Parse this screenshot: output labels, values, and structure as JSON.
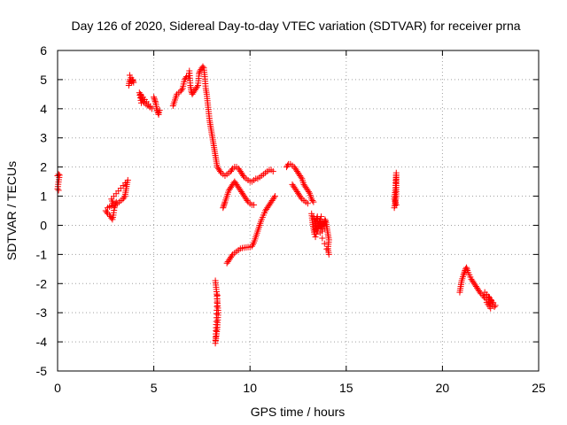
{
  "chart_data": {
    "type": "scatter",
    "title": "Day 126 of 2020, Sidereal Day-to-day VTEC variation (SDTVAR) for receiver prna",
    "xlabel": "GPS time / hours",
    "ylabel": "SDTVAR / TECUs",
    "xlim": [
      0,
      25
    ],
    "ylim": [
      -5,
      6
    ],
    "xticks": [
      0,
      5,
      10,
      15,
      20,
      25
    ],
    "yticks": [
      -5,
      -4,
      -3,
      -2,
      -1,
      0,
      1,
      2,
      3,
      4,
      5,
      6
    ],
    "grid": true,
    "marker": "+",
    "color": "#ff0000",
    "segments": [
      {
        "name": "t0",
        "points": [
          [
            0.0,
            1.7
          ],
          [
            0.05,
            1.75
          ],
          [
            0.1,
            1.72
          ],
          [
            0.0,
            1.25
          ],
          [
            0.05,
            1.2
          ]
        ]
      },
      {
        "name": "t1",
        "points": [
          [
            2.5,
            0.5
          ],
          [
            2.6,
            0.4
          ],
          [
            2.7,
            0.35
          ],
          [
            2.75,
            0.3
          ],
          [
            2.8,
            0.25
          ],
          [
            2.85,
            0.2
          ],
          [
            2.9,
            0.35
          ],
          [
            2.95,
            0.6
          ],
          [
            3.0,
            0.7
          ],
          [
            3.05,
            0.8
          ],
          [
            3.1,
            0.75
          ],
          [
            3.2,
            0.8
          ],
          [
            3.3,
            0.85
          ],
          [
            3.4,
            0.9
          ],
          [
            3.5,
            1.0
          ],
          [
            3.55,
            1.2
          ],
          [
            3.6,
            1.4
          ],
          [
            3.65,
            1.55
          ],
          [
            2.8,
            0.9
          ],
          [
            2.9,
            0.7
          ],
          [
            2.6,
            0.6
          ]
        ]
      },
      {
        "name": "t2",
        "points": [
          [
            3.7,
            4.8
          ],
          [
            3.75,
            5.0
          ],
          [
            3.8,
            4.95
          ],
          [
            3.85,
            4.9
          ],
          [
            3.9,
            5.0
          ],
          [
            3.95,
            4.9
          ],
          [
            3.75,
            5.15
          ]
        ]
      },
      {
        "name": "t3",
        "points": [
          [
            4.3,
            4.5
          ],
          [
            4.35,
            4.4
          ],
          [
            4.4,
            4.3
          ],
          [
            4.5,
            4.2
          ],
          [
            4.6,
            4.15
          ],
          [
            4.7,
            4.1
          ],
          [
            4.8,
            4.05
          ],
          [
            4.9,
            4.0
          ],
          [
            4.25,
            4.55
          ],
          [
            4.35,
            4.2
          ]
        ]
      },
      {
        "name": "t4",
        "points": [
          [
            5.0,
            4.4
          ],
          [
            5.05,
            4.3
          ],
          [
            5.1,
            4.2
          ],
          [
            5.15,
            4.0
          ],
          [
            5.2,
            3.9
          ],
          [
            5.25,
            3.8
          ],
          [
            5.3,
            3.95
          ]
        ]
      },
      {
        "name": "t5",
        "points": [
          [
            6.0,
            4.1
          ],
          [
            6.1,
            4.3
          ],
          [
            6.2,
            4.5
          ],
          [
            6.3,
            4.55
          ],
          [
            6.4,
            4.6
          ],
          [
            6.5,
            4.7
          ],
          [
            6.6,
            5.0
          ],
          [
            6.7,
            5.1
          ],
          [
            6.8,
            5.05
          ],
          [
            6.85,
            5.3
          ],
          [
            6.9,
            4.8
          ],
          [
            6.95,
            4.6
          ],
          [
            7.0,
            4.5
          ],
          [
            7.1,
            4.6
          ],
          [
            7.2,
            4.7
          ],
          [
            7.3,
            4.8
          ],
          [
            7.35,
            5.2
          ],
          [
            7.4,
            5.3
          ],
          [
            7.45,
            5.35
          ],
          [
            7.5,
            5.4
          ],
          [
            7.55,
            5.45
          ],
          [
            7.6,
            5.4
          ],
          [
            7.65,
            5.1
          ],
          [
            7.7,
            4.7
          ],
          [
            7.75,
            4.5
          ],
          [
            7.8,
            4.2
          ],
          [
            7.85,
            3.9
          ],
          [
            7.9,
            3.6
          ],
          [
            7.95,
            3.4
          ],
          [
            8.0,
            3.2
          ],
          [
            8.05,
            3.0
          ],
          [
            8.1,
            2.8
          ],
          [
            8.15,
            2.6
          ],
          [
            8.2,
            2.4
          ],
          [
            8.25,
            2.2
          ],
          [
            8.3,
            2.0
          ],
          [
            8.4,
            1.9
          ],
          [
            8.5,
            1.8
          ],
          [
            8.6,
            1.75
          ],
          [
            8.7,
            1.7
          ],
          [
            8.8,
            1.75
          ],
          [
            8.9,
            1.8
          ],
          [
            9.0,
            1.85
          ],
          [
            9.1,
            1.95
          ],
          [
            9.2,
            2.0
          ],
          [
            9.3,
            2.0
          ],
          [
            9.4,
            1.95
          ],
          [
            9.5,
            1.85
          ],
          [
            9.6,
            1.75
          ],
          [
            9.7,
            1.65
          ],
          [
            9.8,
            1.6
          ],
          [
            9.9,
            1.55
          ],
          [
            10.0,
            1.5
          ],
          [
            10.1,
            1.5
          ],
          [
            10.2,
            1.55
          ],
          [
            10.3,
            1.6
          ],
          [
            10.4,
            1.6
          ],
          [
            10.5,
            1.65
          ],
          [
            10.6,
            1.7
          ],
          [
            10.7,
            1.75
          ],
          [
            10.8,
            1.8
          ],
          [
            10.9,
            1.85
          ],
          [
            11.0,
            1.9
          ],
          [
            11.1,
            1.9
          ],
          [
            11.2,
            1.85
          ]
        ]
      },
      {
        "name": "t6",
        "points": [
          [
            8.2,
            -1.9
          ],
          [
            8.25,
            -2.2
          ],
          [
            8.3,
            -2.6
          ],
          [
            8.35,
            -3.0
          ],
          [
            8.3,
            -3.5
          ],
          [
            8.25,
            -3.8
          ],
          [
            8.2,
            -4.05
          ],
          [
            8.25,
            -3.3
          ],
          [
            8.3,
            -2.4
          ]
        ]
      },
      {
        "name": "t7",
        "points": [
          [
            8.6,
            0.6
          ],
          [
            8.65,
            0.7
          ],
          [
            8.7,
            0.8
          ],
          [
            8.8,
            1.0
          ],
          [
            8.9,
            1.2
          ],
          [
            9.0,
            1.3
          ],
          [
            9.1,
            1.4
          ],
          [
            9.2,
            1.5
          ],
          [
            9.3,
            1.4
          ],
          [
            9.4,
            1.3
          ],
          [
            9.5,
            1.2
          ],
          [
            9.6,
            1.1
          ],
          [
            9.7,
            1.0
          ],
          [
            9.8,
            0.9
          ],
          [
            9.9,
            0.8
          ],
          [
            10.0,
            0.75
          ],
          [
            10.1,
            0.7
          ],
          [
            10.2,
            0.7
          ]
        ]
      },
      {
        "name": "t8",
        "points": [
          [
            8.8,
            -1.3
          ],
          [
            8.9,
            -1.2
          ],
          [
            9.0,
            -1.1
          ],
          [
            9.1,
            -1.0
          ],
          [
            9.2,
            -0.95
          ],
          [
            9.3,
            -0.9
          ],
          [
            9.4,
            -0.85
          ],
          [
            9.5,
            -0.8
          ],
          [
            9.6,
            -0.78
          ],
          [
            9.7,
            -0.77
          ],
          [
            9.8,
            -0.76
          ],
          [
            9.9,
            -0.75
          ],
          [
            10.0,
            -0.75
          ],
          [
            10.1,
            -0.72
          ],
          [
            10.2,
            -0.6
          ],
          [
            10.3,
            -0.4
          ],
          [
            10.4,
            -0.2
          ],
          [
            10.5,
            0.0
          ],
          [
            10.6,
            0.2
          ],
          [
            10.7,
            0.35
          ],
          [
            10.8,
            0.5
          ],
          [
            10.9,
            0.6
          ],
          [
            11.0,
            0.7
          ],
          [
            11.1,
            0.8
          ],
          [
            11.2,
            0.9
          ],
          [
            11.3,
            1.0
          ]
        ]
      },
      {
        "name": "t9",
        "points": [
          [
            11.9,
            2.0
          ],
          [
            12.0,
            2.1
          ],
          [
            12.1,
            2.1
          ],
          [
            12.2,
            2.05
          ],
          [
            12.3,
            2.0
          ],
          [
            12.4,
            1.9
          ],
          [
            12.5,
            1.8
          ],
          [
            12.6,
            1.7
          ],
          [
            12.7,
            1.6
          ],
          [
            12.8,
            1.4
          ],
          [
            12.9,
            1.3
          ],
          [
            13.0,
            1.2
          ],
          [
            13.1,
            1.1
          ],
          [
            13.2,
            0.9
          ],
          [
            13.3,
            0.8
          ]
        ]
      },
      {
        "name": "t10",
        "points": [
          [
            12.2,
            1.4
          ],
          [
            12.3,
            1.3
          ],
          [
            12.4,
            1.2
          ],
          [
            12.5,
            1.1
          ],
          [
            12.6,
            1.0
          ],
          [
            12.7,
            0.9
          ],
          [
            12.8,
            0.85
          ],
          [
            12.9,
            0.8
          ],
          [
            13.0,
            0.75
          ]
        ]
      },
      {
        "name": "t11",
        "points": [
          [
            13.2,
            0.4
          ],
          [
            13.25,
            0.1
          ],
          [
            13.3,
            -0.1
          ],
          [
            13.35,
            -0.3
          ],
          [
            13.4,
            0.0
          ],
          [
            13.45,
            0.2
          ],
          [
            13.5,
            0.3
          ],
          [
            13.55,
            -0.1
          ],
          [
            13.6,
            0.1
          ],
          [
            13.65,
            0.2
          ],
          [
            13.7,
            0.0
          ],
          [
            13.75,
            -0.2
          ],
          [
            13.8,
            0.1
          ],
          [
            13.85,
            0.0
          ],
          [
            13.9,
            0.2
          ],
          [
            13.95,
            0.1
          ],
          [
            14.0,
            -0.1
          ],
          [
            14.05,
            -0.3
          ],
          [
            14.1,
            -0.5
          ],
          [
            14.05,
            -0.8
          ],
          [
            14.1,
            -1.0
          ],
          [
            13.3,
            0.3
          ],
          [
            13.5,
            -0.2
          ],
          [
            13.7,
            0.3
          ],
          [
            13.4,
            -0.4
          ]
        ]
      },
      {
        "name": "t12",
        "points": [
          [
            17.5,
            0.6
          ],
          [
            17.55,
            0.8
          ],
          [
            17.6,
            1.0
          ],
          [
            17.6,
            1.3
          ],
          [
            17.6,
            1.5
          ],
          [
            17.6,
            1.8
          ],
          [
            17.55,
            1.2
          ],
          [
            17.5,
            0.9
          ],
          [
            17.6,
            0.7
          ]
        ]
      },
      {
        "name": "t13",
        "points": [
          [
            20.9,
            -2.3
          ],
          [
            20.95,
            -2.1
          ],
          [
            21.0,
            -1.9
          ],
          [
            21.1,
            -1.7
          ],
          [
            21.15,
            -1.6
          ],
          [
            21.2,
            -1.5
          ],
          [
            21.25,
            -1.45
          ],
          [
            21.3,
            -1.55
          ],
          [
            21.4,
            -1.7
          ],
          [
            21.5,
            -1.85
          ],
          [
            21.6,
            -1.95
          ],
          [
            21.7,
            -2.05
          ],
          [
            21.8,
            -2.15
          ],
          [
            21.9,
            -2.25
          ],
          [
            22.0,
            -2.35
          ],
          [
            22.1,
            -2.4
          ],
          [
            22.2,
            -2.5
          ],
          [
            22.3,
            -2.55
          ],
          [
            22.4,
            -2.6
          ],
          [
            22.5,
            -2.7
          ],
          [
            22.6,
            -2.75
          ],
          [
            22.7,
            -2.8
          ],
          [
            22.75,
            -2.75
          ],
          [
            22.2,
            -2.3
          ],
          [
            22.4,
            -2.45
          ],
          [
            22.5,
            -2.55
          ],
          [
            22.6,
            -2.65
          ],
          [
            22.3,
            -2.65
          ],
          [
            22.5,
            -2.85
          ]
        ]
      }
    ]
  }
}
